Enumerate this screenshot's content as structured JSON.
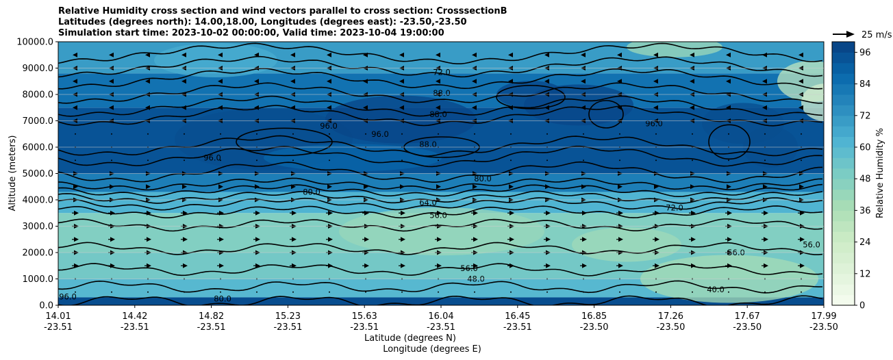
{
  "chart_data": {
    "type": "contour",
    "title_lines": [
      "Relative Humidity cross section and wind vectors parallel to cross section: CrosssectionB",
      "Latitudes (degrees north): 14.00,18.00, Longitudes (degrees east): -23.50,-23.50",
      "Simulation start time: 2023-10-02 00:00:00, Valid time: 2023-10-04 19:00:00"
    ],
    "ylabel": "Altitude (meters)",
    "xlabel_lat": "Latitude (degrees N)",
    "xlabel_lon": "Longitude (degrees E)",
    "ylim": [
      0,
      10000
    ],
    "y_ticks": [
      "0.0",
      "1000.0",
      "2000.0",
      "3000.0",
      "4000.0",
      "5000.0",
      "6000.0",
      "7000.0",
      "8000.0",
      "9000.0",
      "10000.0"
    ],
    "x_ticks": [
      {
        "lat": "14.01",
        "lon": "-23.51"
      },
      {
        "lat": "14.42",
        "lon": "-23.51"
      },
      {
        "lat": "14.82",
        "lon": "-23.51"
      },
      {
        "lat": "15.23",
        "lon": "-23.51"
      },
      {
        "lat": "15.63",
        "lon": "-23.51"
      },
      {
        "lat": "16.04",
        "lon": "-23.51"
      },
      {
        "lat": "16.45",
        "lon": "-23.51"
      },
      {
        "lat": "16.85",
        "lon": "-23.50"
      },
      {
        "lat": "17.26",
        "lon": "-23.50"
      },
      {
        "lat": "17.67",
        "lon": "-23.50"
      },
      {
        "lat": "17.99",
        "lon": "-23.50"
      }
    ],
    "colorbar": {
      "label": "Relative Humidity %",
      "ticks": [
        "0",
        "12",
        "24",
        "36",
        "48",
        "60",
        "72",
        "84",
        "96"
      ],
      "range": [
        0,
        100
      ]
    },
    "quiver_key": "25 m/s",
    "contour_labels": [
      "96.0",
      "88.0",
      "80.0",
      "72.0",
      "64.0",
      "56.0",
      "48.0",
      "40.0"
    ],
    "humidity_layers": [
      {
        "alt_top": 300,
        "rh": 96
      },
      {
        "alt_top": 1000,
        "rh": 60
      },
      {
        "alt_top": 2000,
        "rh": 52
      },
      {
        "alt_top": 3500,
        "rh": 48
      },
      {
        "alt_top": 4300,
        "rh": 62
      },
      {
        "alt_top": 5000,
        "rh": 80
      },
      {
        "alt_top": 7500,
        "rh": 94
      },
      {
        "alt_top": 8800,
        "rh": 84
      },
      {
        "alt_top": 10000,
        "rh": 70
      }
    ]
  },
  "colors": {
    "cmap": [
      "#f7fcf0",
      "#e0f3db",
      "#ccebc5",
      "#a8ddb5",
      "#7bccc4",
      "#4eb3d3",
      "#2b8cbe",
      "#0868ac",
      "#084081"
    ]
  }
}
